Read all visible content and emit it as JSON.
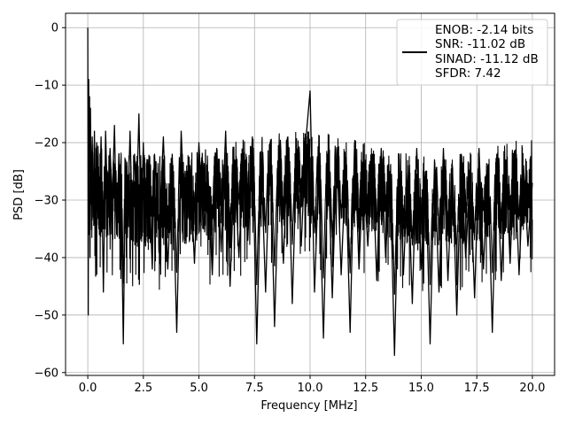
{
  "chart_data": {
    "type": "line",
    "title": "",
    "xlabel": "Frequency [MHz]",
    "ylabel": "PSD [dB]",
    "xlim": [
      -1.0,
      21.0
    ],
    "ylim": [
      -60.5,
      2.5
    ],
    "xticks": [
      0.0,
      2.5,
      5.0,
      7.5,
      10.0,
      12.5,
      15.0,
      17.5,
      20.0
    ],
    "xtick_labels": [
      "0.0",
      "2.5",
      "5.0",
      "7.5",
      "10.0",
      "12.5",
      "15.0",
      "17.5",
      "20.0"
    ],
    "yticks": [
      0,
      -10,
      -20,
      -30,
      -40,
      -50,
      -60
    ],
    "ytick_labels": [
      "0",
      "−10",
      "−20",
      "−30",
      "−40",
      "−50",
      "−60"
    ],
    "grid": true,
    "legend": {
      "placement": "top-right",
      "lines": [
        "ENOB: -2.14 bits",
        "SNR: -11.02 dB",
        "SINAD: -11.12 dB",
        "SFDR: 7.42"
      ]
    },
    "series": [
      {
        "color": "#000000",
        "x": [
          0.0,
          0.02,
          0.04,
          0.06,
          0.08,
          0.1,
          0.12,
          0.15,
          0.2,
          0.25,
          0.3,
          0.35,
          0.4,
          0.5,
          0.6,
          0.7,
          0.8,
          0.9,
          1.0,
          1.1,
          1.2,
          1.3,
          1.4,
          1.5,
          1.6,
          1.7,
          1.8,
          1.9,
          2.0,
          2.1,
          2.2,
          2.3,
          2.4,
          2.5,
          2.6,
          2.7,
          2.8,
          2.9,
          3.0,
          3.2,
          3.4,
          3.6,
          3.8,
          4.0,
          4.2,
          4.4,
          4.6,
          4.8,
          5.0,
          5.2,
          5.4,
          5.6,
          5.8,
          6.0,
          6.2,
          6.4,
          6.6,
          6.8,
          7.0,
          7.2,
          7.4,
          7.6,
          7.8,
          8.0,
          8.2,
          8.4,
          8.6,
          8.8,
          9.0,
          9.2,
          9.4,
          9.6,
          9.8,
          10.0,
          10.2,
          10.4,
          10.6,
          10.8,
          11.0,
          11.2,
          11.4,
          11.6,
          11.8,
          12.0,
          12.2,
          12.4,
          12.6,
          12.8,
          13.0,
          13.2,
          13.4,
          13.6,
          13.8,
          14.0,
          14.2,
          14.4,
          14.6,
          14.8,
          15.0,
          15.2,
          15.4,
          15.6,
          15.8,
          16.0,
          16.2,
          16.4,
          16.6,
          16.8,
          17.0,
          17.2,
          17.4,
          17.6,
          17.8,
          18.0,
          18.2,
          18.4,
          18.6,
          18.8,
          19.0,
          19.2,
          19.4,
          19.6,
          19.8,
          20.0
        ],
        "y": [
          0,
          -50,
          -9,
          -25,
          -12,
          -40,
          -14,
          -30,
          -19,
          -33,
          -18,
          -36,
          -20,
          -35,
          -19,
          -46,
          -18,
          -33,
          -21,
          -30,
          -17,
          -36,
          -22,
          -29,
          -55,
          -23,
          -32,
          -18,
          -34,
          -22,
          -30,
          -15,
          -35,
          -20,
          -38,
          -24,
          -31,
          -42,
          -22,
          -36,
          -19,
          -42,
          -22,
          -53,
          -18,
          -37,
          -24,
          -41,
          -20,
          -35,
          -25,
          -43,
          -21,
          -39,
          -18,
          -45,
          -23,
          -40,
          -22,
          -37,
          -19,
          -55,
          -23,
          -46,
          -20,
          -52,
          -24,
          -41,
          -19,
          -48,
          -22,
          -38,
          -20,
          -11,
          -46,
          -24,
          -54,
          -22,
          -47,
          -21,
          -43,
          -24,
          -53,
          -20,
          -42,
          -24,
          -38,
          -22,
          -44,
          -21,
          -40,
          -25,
          -57,
          -22,
          -43,
          -24,
          -48,
          -21,
          -42,
          -25,
          -55,
          -23,
          -46,
          -21,
          -44,
          -24,
          -50,
          -22,
          -40,
          -25,
          -47,
          -21,
          -42,
          -24,
          -53,
          -22,
          -44,
          -23,
          -41,
          -22,
          -43,
          -24,
          -38,
          -27
        ]
      }
    ]
  }
}
